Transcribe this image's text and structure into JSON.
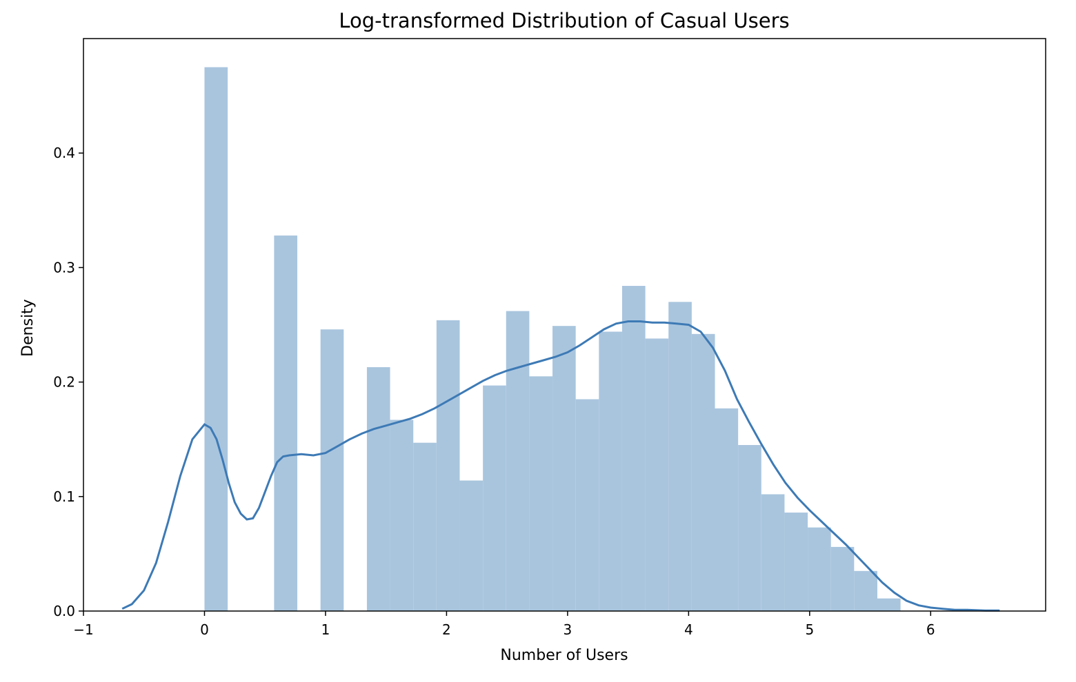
{
  "chart_data": {
    "type": "bar",
    "title": "Log-transformed Distribution of Casual Users",
    "xlabel": "Number of Users",
    "ylabel": "Density",
    "xlim": [
      -1,
      6.95
    ],
    "ylim": [
      0,
      0.5
    ],
    "x_ticks": [
      -1,
      0,
      1,
      2,
      3,
      4,
      5,
      6
    ],
    "x_tick_labels": [
      "−1",
      "0",
      "1",
      "2",
      "3",
      "4",
      "5",
      "6"
    ],
    "y_ticks": [
      0.0,
      0.1,
      0.2,
      0.3,
      0.4
    ],
    "y_tick_labels": [
      "0.0",
      "0.1",
      "0.2",
      "0.3",
      "0.4"
    ],
    "grid": false,
    "bar_color": "#a9c5de",
    "kde_color": "#3d7ab5",
    "histogram": {
      "bin_start": 0,
      "bin_width": 0.1917,
      "densities": [
        0.475,
        0,
        0,
        0.328,
        0,
        0.246,
        0,
        0.213,
        0.167,
        0.147,
        0.254,
        0.114,
        0.197,
        0.262,
        0.205,
        0.249,
        0.185,
        0.244,
        0.284,
        0.238,
        0.27,
        0.242,
        0.177,
        0.145,
        0.102,
        0.086,
        0.073,
        0.056,
        0.035,
        0.011
      ]
    },
    "kde": {
      "x": [
        -0.68,
        -0.6,
        -0.5,
        -0.4,
        -0.3,
        -0.2,
        -0.1,
        0.0,
        0.05,
        0.1,
        0.15,
        0.2,
        0.25,
        0.3,
        0.35,
        0.4,
        0.45,
        0.5,
        0.55,
        0.6,
        0.65,
        0.7,
        0.8,
        0.9,
        1.0,
        1.1,
        1.2,
        1.3,
        1.4,
        1.5,
        1.6,
        1.7,
        1.8,
        1.9,
        2.0,
        2.1,
        2.2,
        2.3,
        2.4,
        2.5,
        2.6,
        2.7,
        2.8,
        2.9,
        3.0,
        3.1,
        3.2,
        3.3,
        3.4,
        3.5,
        3.6,
        3.7,
        3.8,
        3.9,
        4.0,
        4.1,
        4.2,
        4.3,
        4.4,
        4.5,
        4.6,
        4.7,
        4.8,
        4.9,
        5.0,
        5.1,
        5.2,
        5.3,
        5.4,
        5.5,
        5.6,
        5.7,
        5.8,
        5.9,
        6.0,
        6.1,
        6.2,
        6.3,
        6.45,
        6.57
      ],
      "y": [
        0.002,
        0.006,
        0.018,
        0.042,
        0.078,
        0.118,
        0.15,
        0.163,
        0.16,
        0.15,
        0.132,
        0.112,
        0.095,
        0.085,
        0.08,
        0.081,
        0.09,
        0.104,
        0.118,
        0.13,
        0.135,
        0.136,
        0.137,
        0.136,
        0.138,
        0.144,
        0.15,
        0.155,
        0.159,
        0.162,
        0.165,
        0.168,
        0.172,
        0.177,
        0.183,
        0.189,
        0.195,
        0.201,
        0.206,
        0.21,
        0.213,
        0.216,
        0.219,
        0.222,
        0.226,
        0.232,
        0.239,
        0.246,
        0.251,
        0.253,
        0.253,
        0.252,
        0.252,
        0.251,
        0.25,
        0.244,
        0.23,
        0.21,
        0.185,
        0.165,
        0.146,
        0.128,
        0.112,
        0.099,
        0.088,
        0.078,
        0.068,
        0.058,
        0.047,
        0.036,
        0.025,
        0.016,
        0.009,
        0.005,
        0.003,
        0.002,
        0.001,
        0.001,
        0.0005,
        0.0004
      ]
    }
  }
}
